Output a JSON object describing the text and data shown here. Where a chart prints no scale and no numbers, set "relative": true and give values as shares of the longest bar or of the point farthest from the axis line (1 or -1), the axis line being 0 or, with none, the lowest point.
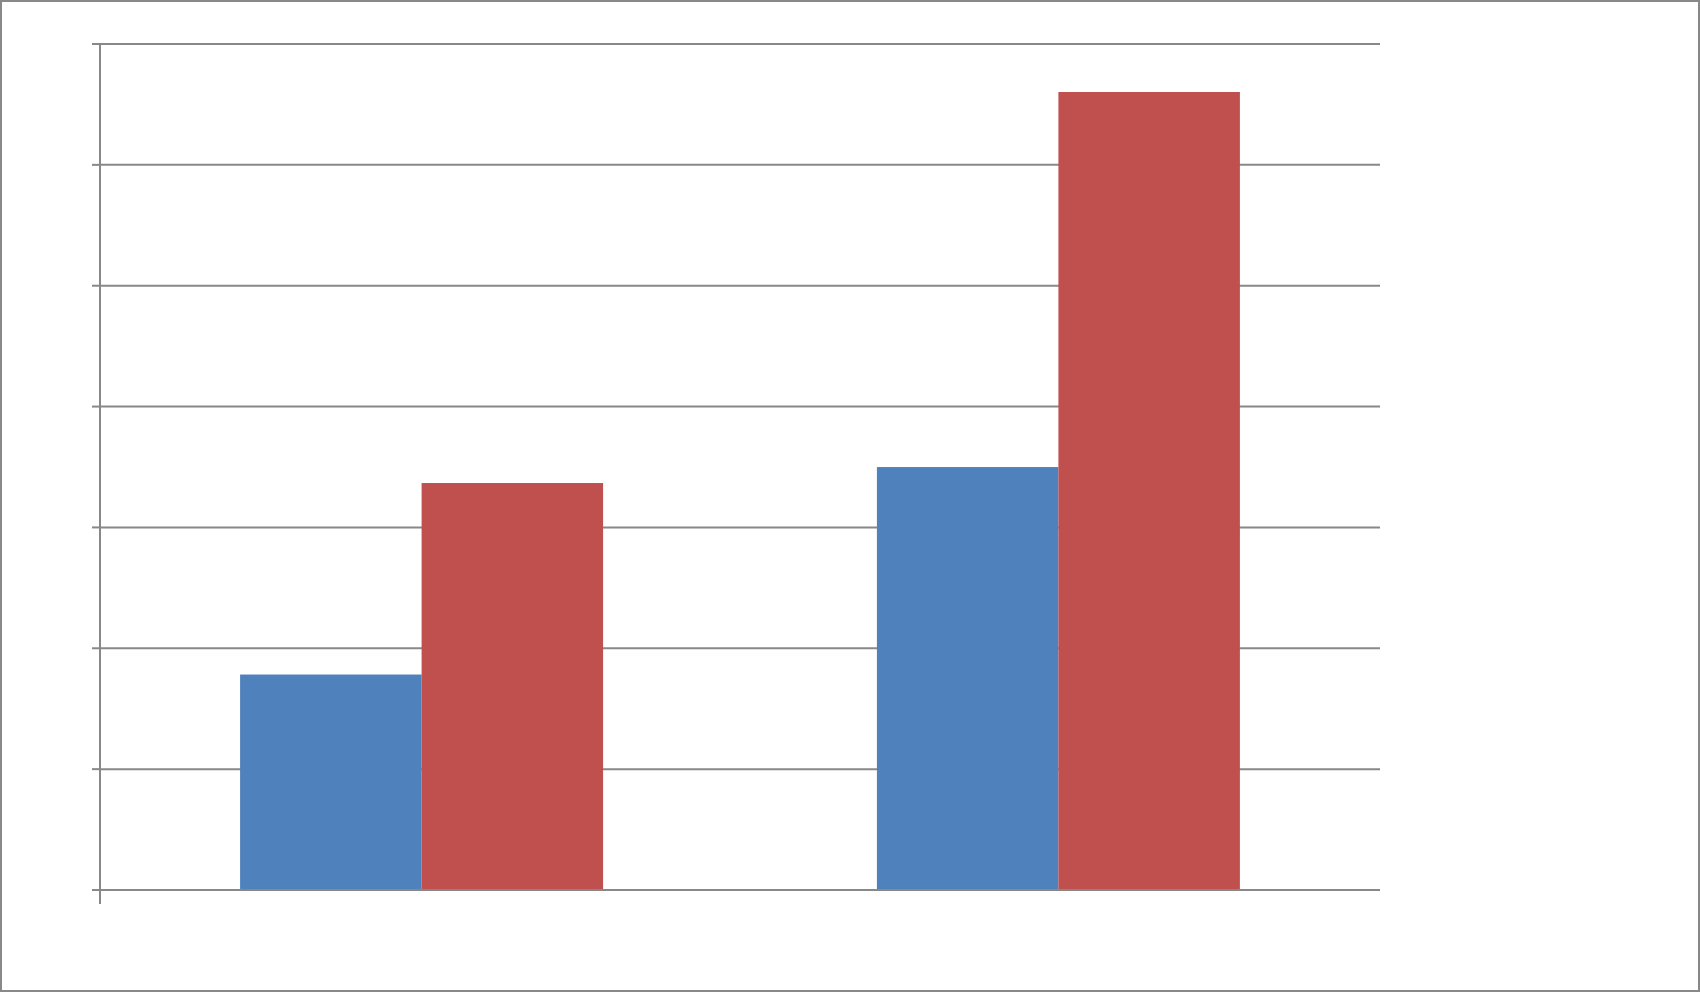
{
  "chart_data": {
    "type": "bar",
    "relative": true,
    "grid": "y",
    "categories": [
      null,
      null
    ],
    "series": [
      {
        "color": "#4f81bd",
        "values": [
          0.27,
          0.53
        ]
      },
      {
        "color": "#c0504d",
        "values": [
          0.51,
          1
        ]
      }
    ]
  }
}
